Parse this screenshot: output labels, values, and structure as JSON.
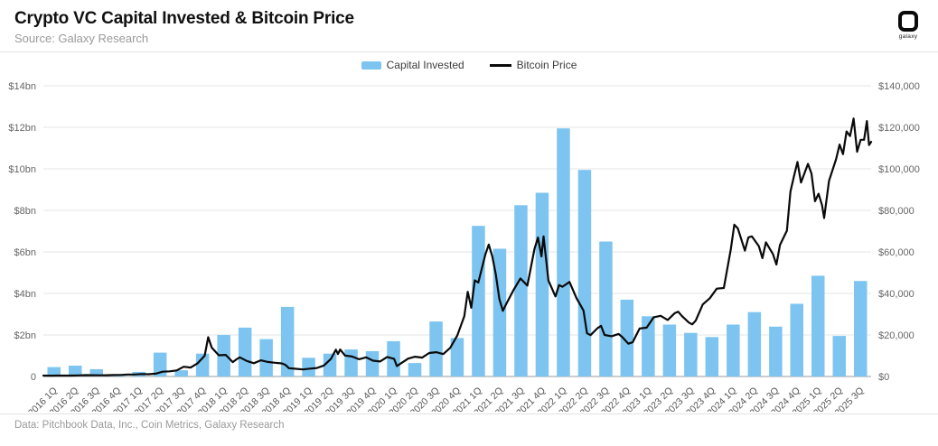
{
  "header": {
    "title": "Crypto VC Capital Invested & Bitcoin Price",
    "source": "Source: Galaxy Research",
    "logo_text": "galaxy"
  },
  "legend": {
    "items": [
      {
        "label": "Capital Invested",
        "type": "bar",
        "color": "#7DC5F0"
      },
      {
        "label": "Bitcoin Price",
        "type": "line",
        "color": "#0a0a0a"
      }
    ],
    "position": "top-center"
  },
  "footer": {
    "text": "Data: Pitchbook Data, Inc., Coin Metrics, Galaxy Research"
  },
  "chart_data": {
    "type": "bar+line dual-axis",
    "title": "Crypto VC Capital Invested & Bitcoin Price",
    "grid": true,
    "categories": [
      "2016 1Q",
      "2016 2Q",
      "2016 3Q",
      "2016 4Q",
      "2017 1Q",
      "2017 2Q",
      "2017 3Q",
      "2017 4Q",
      "2018 1Q",
      "2018 2Q",
      "2018 3Q",
      "2018 4Q",
      "2019 1Q",
      "2019 2Q",
      "2019 3Q",
      "2019 4Q",
      "2020 1Q",
      "2020 2Q",
      "2020 3Q",
      "2020 4Q",
      "2021 1Q",
      "2021 2Q",
      "2021 3Q",
      "2021 4Q",
      "2022 1Q",
      "2022 2Q",
      "2022 3Q",
      "2022 4Q",
      "2023 1Q",
      "2023 2Q",
      "2023 3Q",
      "2023 4Q",
      "2024 1Q",
      "2024 2Q",
      "2024 3Q",
      "2024 4Q",
      "2025 1Q",
      "2025 2Q",
      "2025 3Q"
    ],
    "series": [
      {
        "name": "Capital Invested",
        "type": "bar",
        "axis": "left",
        "unit": "$bn",
        "values": [
          0.45,
          0.52,
          0.35,
          0.1,
          0.22,
          1.15,
          0.3,
          1.1,
          2.0,
          2.35,
          1.8,
          3.35,
          0.9,
          1.1,
          1.3,
          1.22,
          1.7,
          0.65,
          2.65,
          1.85,
          7.25,
          6.15,
          8.25,
          8.85,
          11.95,
          9.95,
          6.5,
          3.7,
          2.9,
          2.5,
          2.1,
          1.9,
          2.5,
          3.1,
          2.4,
          3.5,
          4.85,
          1.95,
          4.6
        ]
      },
      {
        "name": "Bitcoin Price",
        "type": "line",
        "axis": "right",
        "unit": "$ thousands, x = months since Jan 2016",
        "points": [
          [
            0,
            0.43
          ],
          [
            1,
            0.37
          ],
          [
            2,
            0.44
          ],
          [
            3,
            0.42
          ],
          [
            4,
            0.45
          ],
          [
            5,
            0.53
          ],
          [
            6,
            0.67
          ],
          [
            7,
            0.62
          ],
          [
            8,
            0.58
          ],
          [
            9,
            0.61
          ],
          [
            10,
            0.7
          ],
          [
            11,
            0.74
          ],
          [
            12,
            0.96
          ],
          [
            13,
            0.97
          ],
          [
            14,
            1.18
          ],
          [
            15,
            1.08
          ],
          [
            16,
            1.35
          ],
          [
            17,
            2.3
          ],
          [
            18,
            2.5
          ],
          [
            19,
            2.9
          ],
          [
            20,
            4.7
          ],
          [
            21,
            4.3
          ],
          [
            22,
            6.4
          ],
          [
            23,
            10.0
          ],
          [
            23.5,
            18.9
          ],
          [
            24,
            13.9
          ],
          [
            25,
            10.2
          ],
          [
            26,
            10.4
          ],
          [
            27,
            6.9
          ],
          [
            27.5,
            8.2
          ],
          [
            28,
            9.2
          ],
          [
            29,
            7.5
          ],
          [
            30,
            6.4
          ],
          [
            31,
            7.8
          ],
          [
            32,
            7.0
          ],
          [
            33,
            6.6
          ],
          [
            34,
            6.3
          ],
          [
            34.5,
            5.6
          ],
          [
            35,
            4.0
          ],
          [
            36,
            3.7
          ],
          [
            37,
            3.4
          ],
          [
            38,
            3.8
          ],
          [
            39,
            4.1
          ],
          [
            40,
            5.3
          ],
          [
            41,
            8.5
          ],
          [
            41.7,
            12.9
          ],
          [
            42,
            10.8
          ],
          [
            42.3,
            13.0
          ],
          [
            43,
            10.1
          ],
          [
            44,
            9.6
          ],
          [
            45,
            8.3
          ],
          [
            46,
            9.2
          ],
          [
            47,
            7.6
          ],
          [
            48,
            7.2
          ],
          [
            49,
            9.4
          ],
          [
            50,
            8.5
          ],
          [
            50.4,
            5.0
          ],
          [
            51,
            6.4
          ],
          [
            52,
            8.6
          ],
          [
            53,
            9.5
          ],
          [
            54,
            9.1
          ],
          [
            55,
            11.3
          ],
          [
            56,
            11.7
          ],
          [
            57,
            10.8
          ],
          [
            58,
            13.8
          ],
          [
            59,
            19.7
          ],
          [
            60,
            29.0
          ],
          [
            60.5,
            40.8
          ],
          [
            61,
            33.1
          ],
          [
            61.5,
            46.3
          ],
          [
            62,
            45.2
          ],
          [
            63,
            58.8
          ],
          [
            63.5,
            63.5
          ],
          [
            64,
            57.8
          ],
          [
            64.5,
            49.1
          ],
          [
            65,
            37.3
          ],
          [
            65.5,
            31.6
          ],
          [
            66,
            35.0
          ],
          [
            67,
            41.5
          ],
          [
            68,
            47.2
          ],
          [
            69,
            43.8
          ],
          [
            70,
            61.3
          ],
          [
            70.5,
            66.9
          ],
          [
            71,
            57.8
          ],
          [
            71.3,
            67.5
          ],
          [
            72,
            46.2
          ],
          [
            73,
            38.5
          ],
          [
            73.5,
            44.0
          ],
          [
            74,
            43.2
          ],
          [
            75,
            45.5
          ],
          [
            76,
            37.7
          ],
          [
            77,
            31.8
          ],
          [
            77.5,
            20.8
          ],
          [
            78,
            19.9
          ],
          [
            79,
            23.3
          ],
          [
            79.5,
            24.4
          ],
          [
            80,
            20.0
          ],
          [
            81,
            19.4
          ],
          [
            82,
            20.5
          ],
          [
            82.5,
            19.1
          ],
          [
            83,
            17.2
          ],
          [
            83.4,
            15.8
          ],
          [
            84,
            16.5
          ],
          [
            85,
            23.1
          ],
          [
            86,
            23.5
          ],
          [
            87,
            28.5
          ],
          [
            88,
            29.2
          ],
          [
            89,
            27.2
          ],
          [
            90,
            30.5
          ],
          [
            90.5,
            31.2
          ],
          [
            91,
            29.2
          ],
          [
            92,
            26.0
          ],
          [
            92.5,
            25.1
          ],
          [
            93,
            26.9
          ],
          [
            94,
            34.7
          ],
          [
            95,
            37.7
          ],
          [
            96,
            42.3
          ],
          [
            97,
            42.6
          ],
          [
            98,
            61.2
          ],
          [
            98.5,
            73.1
          ],
          [
            99,
            71.3
          ],
          [
            100,
            60.6
          ],
          [
            100.5,
            67.0
          ],
          [
            101,
            67.5
          ],
          [
            102,
            62.7
          ],
          [
            102.5,
            57.0
          ],
          [
            103,
            64.6
          ],
          [
            104,
            59.0
          ],
          [
            104.5,
            53.9
          ],
          [
            105,
            63.3
          ],
          [
            106,
            70.2
          ],
          [
            106.5,
            89.0
          ],
          [
            107,
            96.4
          ],
          [
            107.5,
            103.3
          ],
          [
            108,
            93.4
          ],
          [
            109,
            102.4
          ],
          [
            109.5,
            97.7
          ],
          [
            110,
            84.4
          ],
          [
            110.5,
            88.0
          ],
          [
            111,
            82.5
          ],
          [
            111.3,
            76.3
          ],
          [
            112,
            94.2
          ],
          [
            113,
            104.6
          ],
          [
            113.5,
            111.7
          ],
          [
            114,
            107.1
          ],
          [
            114.5,
            118.0
          ],
          [
            115,
            115.8
          ],
          [
            115.5,
            124.2
          ],
          [
            116,
            108.2
          ],
          [
            116.5,
            114.0
          ],
          [
            117,
            114.0
          ],
          [
            117.4,
            123.0
          ],
          [
            117.7,
            111.5
          ],
          [
            118,
            113.0
          ]
        ]
      }
    ],
    "left_axis": {
      "ticks": [
        "$14bn",
        "$12bn",
        "$10bn",
        "$8bn",
        "$6bn",
        "$4bn",
        "$2bn",
        "0"
      ],
      "max": 14,
      "min": 0,
      "unit": "billion USD"
    },
    "right_axis": {
      "ticks": [
        "$140,000",
        "$120,000",
        "$100,000",
        "$80,000",
        "$60,000",
        "$40,000",
        "$20,000",
        "$0"
      ],
      "max": 140000,
      "min": 0,
      "unit": "USD"
    },
    "colors": {
      "bar": "#7DC5F0",
      "line": "#0a0a0a",
      "grid": "#e4e4e4",
      "baseline": "#9a9a9a",
      "axis_text": "#666666",
      "x_text": "#555555"
    }
  }
}
